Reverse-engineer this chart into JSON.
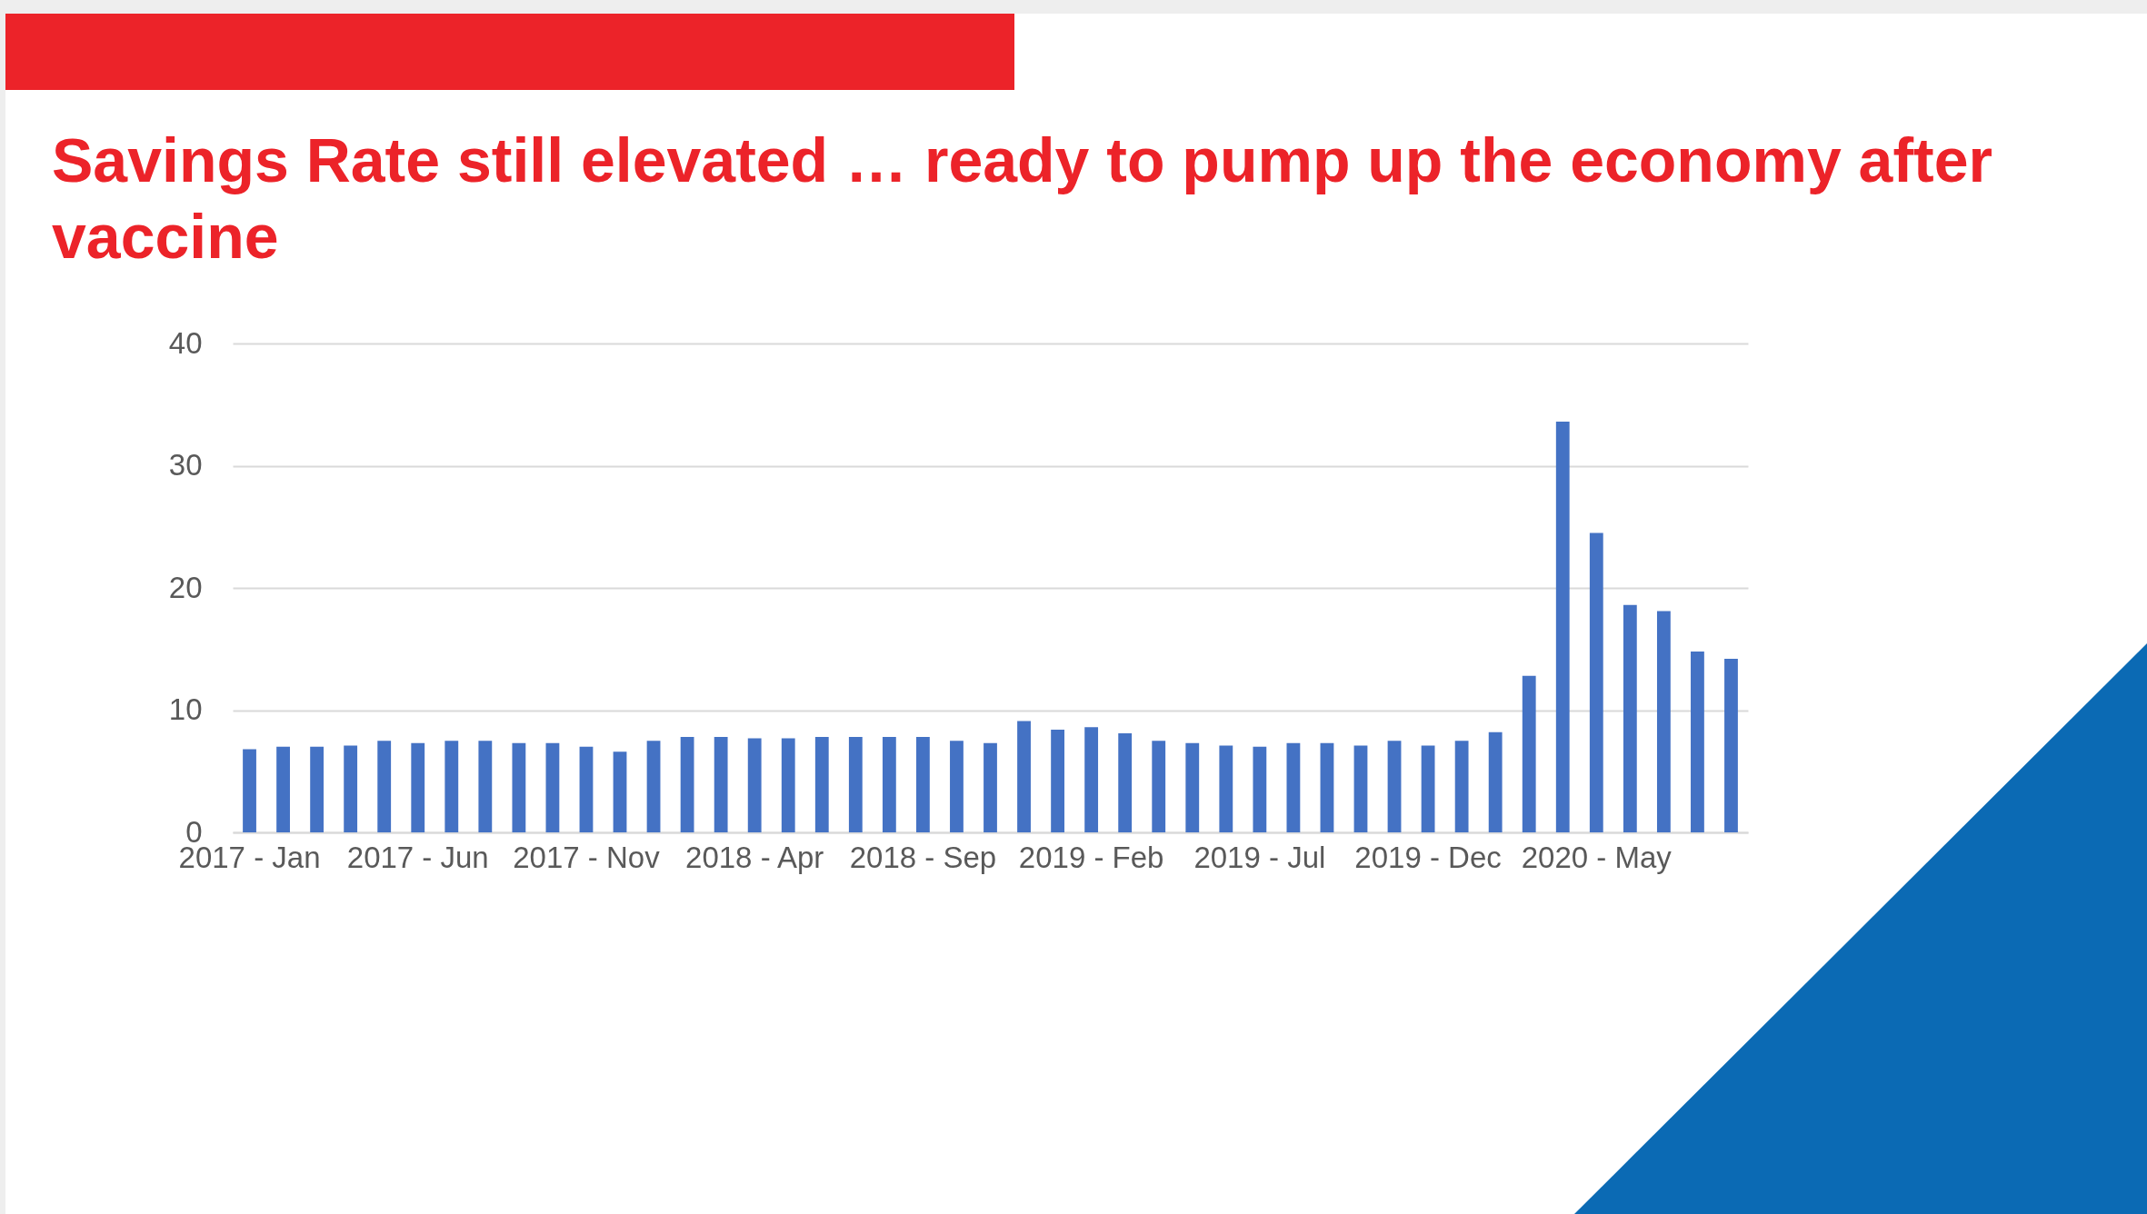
{
  "chart_data": {
    "type": "bar",
    "title": "Savings Rate still elevated … ready to pump up the economy after vaccine",
    "categories": [
      "2017 - Jan",
      null,
      null,
      null,
      null,
      "2017 - Jun",
      null,
      null,
      null,
      null,
      "2017 - Nov",
      null,
      null,
      null,
      null,
      "2018 - Apr",
      null,
      null,
      null,
      null,
      "2018 - Sep",
      null,
      null,
      null,
      null,
      "2019 - Feb",
      null,
      null,
      null,
      null,
      "2019 - Jul",
      null,
      null,
      null,
      null,
      "2019 - Dec",
      null,
      null,
      null,
      null,
      "2020 - May",
      null,
      null,
      null,
      null
    ],
    "values": [
      6.8,
      7.0,
      7.0,
      7.1,
      7.5,
      7.3,
      7.5,
      7.5,
      7.3,
      7.3,
      7.0,
      6.6,
      7.5,
      7.8,
      7.8,
      7.7,
      7.7,
      7.8,
      7.8,
      7.8,
      7.8,
      7.5,
      7.3,
      9.1,
      8.4,
      8.6,
      8.1,
      7.5,
      7.3,
      7.1,
      7.0,
      7.3,
      7.3,
      7.1,
      7.5,
      7.1,
      7.5,
      8.2,
      12.8,
      33.6,
      24.5,
      18.6,
      18.1,
      14.8,
      14.2
    ],
    "color": "#4472c4",
    "ylim": [
      0,
      40
    ],
    "yticks": [
      0,
      10,
      20,
      30,
      40
    ],
    "grid": "y"
  }
}
